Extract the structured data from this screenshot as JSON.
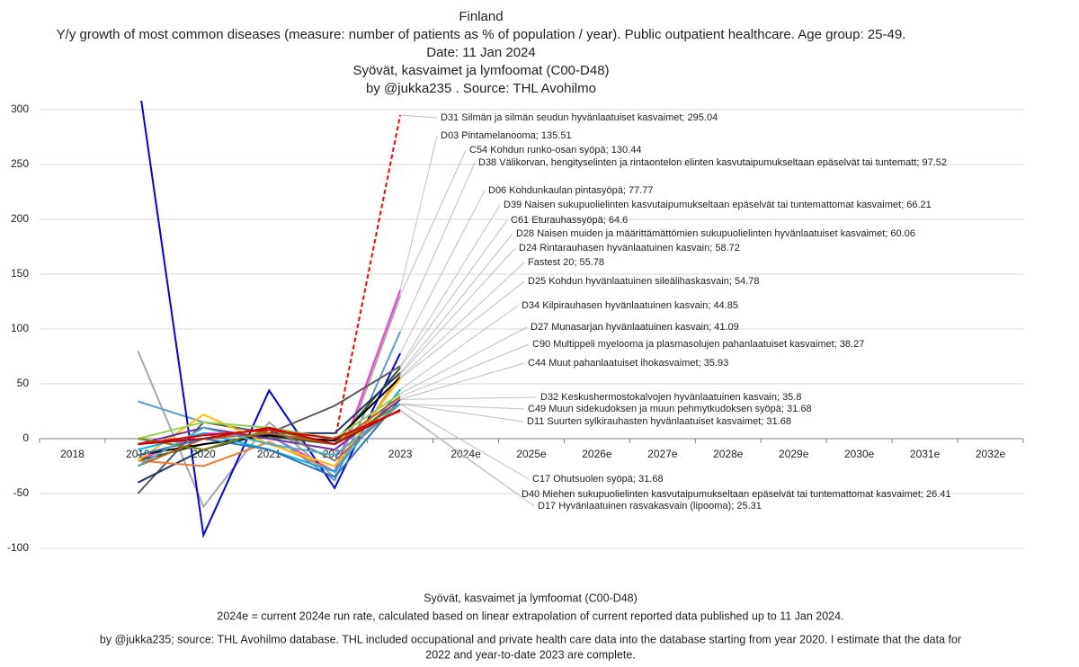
{
  "chart_data": {
    "type": "line",
    "title_lines": [
      "Finland",
      "Y/y growth of most common diseases (measure: number of patients as % of population / year).  Public outpatient healthcare. Age group: 25-49.",
      "Date: 11 Jan 2024",
      "Syövät, kasvaimet ja lymfoomat (C00-D48)",
      "by @jukka235 . Source: THL Avohilmo"
    ],
    "footer_lines": [
      "Syövät, kasvaimet ja lymfoomat (C00-D48)",
      "2024e = current 2024e run rate, calculated based on linear extrapolation of current reported data published up to 11 Jan 2024.",
      "by @jukka235; source: THL Avohilmo database. THL included occupational and private health care data into the database starting from year 2020. I estimate that the data for",
      "2022 and year-to-date 2023 are complete."
    ],
    "categories": [
      "2018",
      "2019",
      "2020",
      "2021",
      "2022",
      "2023",
      "2024e",
      "2025e",
      "2026e",
      "2027e",
      "2028e",
      "2029e",
      "2030e",
      "2031e",
      "2032e"
    ],
    "ylim": [
      -100,
      300
    ],
    "yticks": [
      -100,
      -50,
      0,
      50,
      100,
      150,
      200,
      250,
      300
    ],
    "grid": true,
    "series": [
      {
        "name": "D31 Silmän ja silmän seudun hyvänlaatuiset kasvaimet",
        "color": "#ff0000",
        "dash": true,
        "values": [
          null,
          null,
          null,
          null,
          -2,
          295.04,
          null,
          null,
          null,
          null,
          null,
          null,
          null,
          null,
          null
        ]
      },
      {
        "name": "D03 Pintamelanooma",
        "color": "#ff33cc",
        "values": [
          null,
          -20,
          5,
          3,
          -30,
          135.51,
          null,
          null,
          null,
          null,
          null,
          null,
          null,
          null,
          null
        ]
      },
      {
        "name": "C54 Kohdun runko-osan syöpä",
        "color": "#a6a6a6",
        "values": [
          null,
          80,
          -62,
          15,
          -35,
          130.44,
          null,
          null,
          null,
          null,
          null,
          null,
          null,
          null,
          null
        ]
      },
      {
        "name": "D38 Välikorvan, hengityselinten ja rintaontelon elinten kasvutaipumukseltaan epäselvät tai tuntematt",
        "color": "#5b9bd5",
        "values": [
          null,
          34,
          15,
          5,
          -38,
          97.52,
          null,
          null,
          null,
          null,
          null,
          null,
          null,
          null,
          null
        ]
      },
      {
        "name": "D06 Kohdunkaulan pintasyöpä",
        "color": "#0000ee",
        "values": [
          null,
          330,
          -88,
          44,
          -45,
          77.77,
          null,
          null,
          null,
          null,
          null,
          null,
          null,
          null,
          null
        ]
      },
      {
        "name": "D39 Naisen sukupuolielinten kasvutaipumukseltaan epäselvät tai tuntemattomat kasvaimet",
        "color": "#595959",
        "values": [
          null,
          -50,
          15,
          5,
          30,
          66.21,
          null,
          null,
          null,
          null,
          null,
          null,
          null,
          null,
          null
        ]
      },
      {
        "name": "C61 Eturauhassyöpä",
        "color": "#375623",
        "values": [
          null,
          -20,
          -5,
          2,
          -5,
          64.6,
          null,
          null,
          null,
          null,
          null,
          null,
          null,
          null,
          null
        ]
      },
      {
        "name": "D28 Naisen muiden ja määrittämättömien sukupuolielinten hyvänlaatuiset kasvaimet",
        "color": "#203864",
        "values": [
          null,
          -40,
          -10,
          5,
          5,
          60.06,
          null,
          null,
          null,
          null,
          null,
          null,
          null,
          null,
          null
        ]
      },
      {
        "name": "D24 Rintarauhasen hyvänlaatuinen kasvain",
        "color": "#ed7d31",
        "values": [
          null,
          -20,
          -25,
          -3,
          -30,
          58.72,
          null,
          null,
          null,
          null,
          null,
          null,
          null,
          null,
          null
        ]
      },
      {
        "name": "Fastest 20",
        "color": "#000000",
        "values": [
          null,
          -15,
          -5,
          3,
          -2,
          55.78,
          null,
          null,
          null,
          null,
          null,
          null,
          null,
          null,
          null
        ]
      },
      {
        "name": "D25 Kohdun hyvänlaatuinen sileälihaskasvain",
        "color": "#ffc000",
        "values": [
          null,
          -20,
          22,
          -5,
          -25,
          54.78,
          null,
          null,
          null,
          null,
          null,
          null,
          null,
          null,
          null
        ]
      },
      {
        "name": "D34 Kilpirauhasen hyvänlaatuinen kasvain",
        "color": "#00b0f0",
        "values": [
          null,
          -10,
          5,
          -10,
          -30,
          44.85,
          null,
          null,
          null,
          null,
          null,
          null,
          null,
          null,
          null
        ]
      },
      {
        "name": "D27 Munasarjan hyvänlaatuinen kasvain",
        "color": "#92d050",
        "values": [
          null,
          0,
          15,
          10,
          0,
          41.09,
          null,
          null,
          null,
          null,
          null,
          null,
          null,
          null,
          null
        ]
      },
      {
        "name": "C90 Multippeli myelooma ja plasmasolujen pahanlaatuiset kasvaimet",
        "color": "#c55a11",
        "values": [
          null,
          -25,
          0,
          5,
          -5,
          38.27,
          null,
          null,
          null,
          null,
          null,
          null,
          null,
          null,
          null
        ]
      },
      {
        "name": "C44 Muut pahanlaatuiset ihokasvaimet",
        "color": "#2e75b6",
        "values": [
          null,
          -15,
          0,
          -10,
          -35,
          35.93,
          null,
          null,
          null,
          null,
          null,
          null,
          null,
          null,
          null
        ]
      },
      {
        "name": "D32 Keskushermostokalvojen hyvänlaatuinen kasvain",
        "color": "#7030a0",
        "values": [
          null,
          -5,
          10,
          0,
          -10,
          35.8,
          null,
          null,
          null,
          null,
          null,
          null,
          null,
          null,
          null
        ]
      },
      {
        "name": "C49 Muun sidekudoksen ja muun pehmytkudoksen syöpä",
        "color": "#808000",
        "values": [
          null,
          0,
          -10,
          8,
          -5,
          31.68,
          null,
          null,
          null,
          null,
          null,
          null,
          null,
          null,
          null
        ]
      },
      {
        "name": "D11 Suurten sylkirauhasten hyvänlaatuiset kasvaimet",
        "color": "#7f7f7f",
        "values": [
          null,
          -5,
          0,
          10,
          -20,
          31.68,
          null,
          null,
          null,
          null,
          null,
          null,
          null,
          null,
          null
        ]
      },
      {
        "name": "C17 Ohutsuolen syöpä",
        "color": "#4bacc6",
        "values": [
          null,
          -25,
          10,
          -5,
          -15,
          31.68,
          null,
          null,
          null,
          null,
          null,
          null,
          null,
          null,
          null
        ]
      },
      {
        "name": "D40 Miehen sukupuolielinten kasvutaipumukseltaan epäselvät tai tuntemattomat kasvaimet",
        "color": "#c00000",
        "values": [
          null,
          -5,
          0,
          10,
          -5,
          26.41,
          null,
          null,
          null,
          null,
          null,
          null,
          null,
          null,
          null
        ]
      },
      {
        "name": "D17 Hyvänlaatuinen rasvakasvain (lipooma)",
        "color": "#e00000",
        "values": [
          null,
          -5,
          3,
          8,
          0,
          25.31,
          null,
          null,
          null,
          null,
          null,
          null,
          null,
          null,
          null
        ]
      }
    ]
  }
}
